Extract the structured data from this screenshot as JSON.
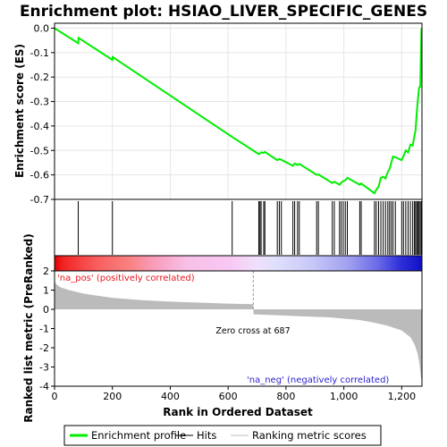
{
  "chart_data": {
    "type": "line",
    "title": "Enrichment plot: HSIAO_LIVER_SPECIFIC_GENES",
    "colors": {
      "enrichment_line": "#00ee00",
      "hits": "#000000",
      "metric_fill": "#bbbbbb",
      "pos_label": "#e8161d",
      "neg_label": "#2a1fcc"
    },
    "enrichment_panel": {
      "ylabel": "Enrichment score (ES)",
      "ylim": [
        -0.7,
        0.02
      ],
      "yticks": [
        "0.0",
        "-0.1",
        "-0.2",
        "-0.3",
        "-0.4",
        "-0.5",
        "-0.6",
        "-0.7"
      ],
      "ytick_values": [
        0.0,
        -0.1,
        -0.2,
        -0.3,
        -0.4,
        -0.5,
        -0.6,
        -0.7
      ],
      "series": [
        {
          "name": "Enrichment profile",
          "x": [
            0,
            82,
            83,
            200,
            201,
            614,
            706,
            710,
            714,
            723,
            727,
            770,
            777,
            784,
            824,
            830,
            840,
            846,
            906,
            912,
            960,
            967,
            985,
            991,
            998,
            1005,
            1012,
            1055,
            1060,
            1106,
            1112,
            1120,
            1128,
            1136,
            1144,
            1152,
            1158,
            1164,
            1170,
            1178,
            1200,
            1206,
            1214,
            1222,
            1230,
            1238,
            1244,
            1248,
            1252,
            1256,
            1260,
            1264,
            1268
          ],
          "values": [
            0.0,
            -0.062,
            -0.04,
            -0.13,
            -0.118,
            -0.445,
            -0.515,
            -0.512,
            -0.508,
            -0.51,
            -0.506,
            -0.54,
            -0.535,
            -0.538,
            -0.563,
            -0.553,
            -0.56,
            -0.555,
            -0.6,
            -0.598,
            -0.633,
            -0.628,
            -0.64,
            -0.632,
            -0.625,
            -0.622,
            -0.612,
            -0.64,
            -0.635,
            -0.675,
            -0.66,
            -0.648,
            -0.612,
            -0.608,
            -0.615,
            -0.588,
            -0.575,
            -0.55,
            -0.525,
            -0.528,
            -0.54,
            -0.523,
            -0.5,
            -0.508,
            -0.476,
            -0.48,
            -0.44,
            -0.415,
            -0.345,
            -0.29,
            -0.243,
            -0.24,
            0.0
          ]
        }
      ]
    },
    "hits_panel": {
      "hit_ranks": [
        82,
        200,
        614,
        706,
        710,
        714,
        723,
        727,
        770,
        777,
        784,
        824,
        830,
        840,
        846,
        906,
        912,
        960,
        967,
        985,
        991,
        998,
        1005,
        1012,
        1055,
        1060,
        1106,
        1112,
        1120,
        1128,
        1136,
        1144,
        1152,
        1158,
        1164,
        1170,
        1178,
        1200,
        1206,
        1214,
        1222,
        1230,
        1238,
        1244,
        1248,
        1252,
        1256,
        1260,
        1264,
        1268
      ]
    },
    "metric_panel": {
      "ylabel": "Ranked list metric (PreRanked)",
      "xlabel": "Rank in Ordered Dataset",
      "xlim": [
        0,
        1270
      ],
      "ylim": [
        -4,
        2
      ],
      "yticks": [
        "2",
        "1",
        "0",
        "-1",
        "-2",
        "-3",
        "-4"
      ],
      "ytick_values": [
        2,
        1,
        0,
        -1,
        -2,
        -3,
        -4
      ],
      "xticks": [
        "0",
        "200",
        "400",
        "600",
        "800",
        "1,000",
        "1,200"
      ],
      "xtick_values": [
        0,
        200,
        400,
        600,
        800,
        1000,
        1200
      ],
      "zero_cross_label": "Zero cross at 687",
      "zero_cross_rank": 687,
      "pos_label": "'na_pos' (positively correlated)",
      "neg_label": "'na_neg' (negatively correlated)",
      "curve_x": [
        0,
        5,
        20,
        50,
        100,
        150,
        200,
        300,
        400,
        500,
        600,
        686,
        688,
        750,
        850,
        950,
        1050,
        1100,
        1150,
        1200,
        1230,
        1245,
        1255,
        1262,
        1266,
        1270
      ],
      "curve_y": [
        1.45,
        1.32,
        1.15,
        1.0,
        0.82,
        0.7,
        0.6,
        0.48,
        0.4,
        0.35,
        0.3,
        0.27,
        -0.26,
        -0.3,
        -0.36,
        -0.42,
        -0.55,
        -0.68,
        -0.85,
        -1.1,
        -1.45,
        -1.85,
        -2.3,
        -2.9,
        -3.5,
        -3.75
      ]
    },
    "legend": {
      "items": [
        {
          "label": "Enrichment profile",
          "color": "#00ee00"
        },
        {
          "label": "Hits",
          "color": "#000000"
        },
        {
          "label": "Ranking metric scores",
          "color": "#bbbbbb"
        }
      ]
    }
  }
}
